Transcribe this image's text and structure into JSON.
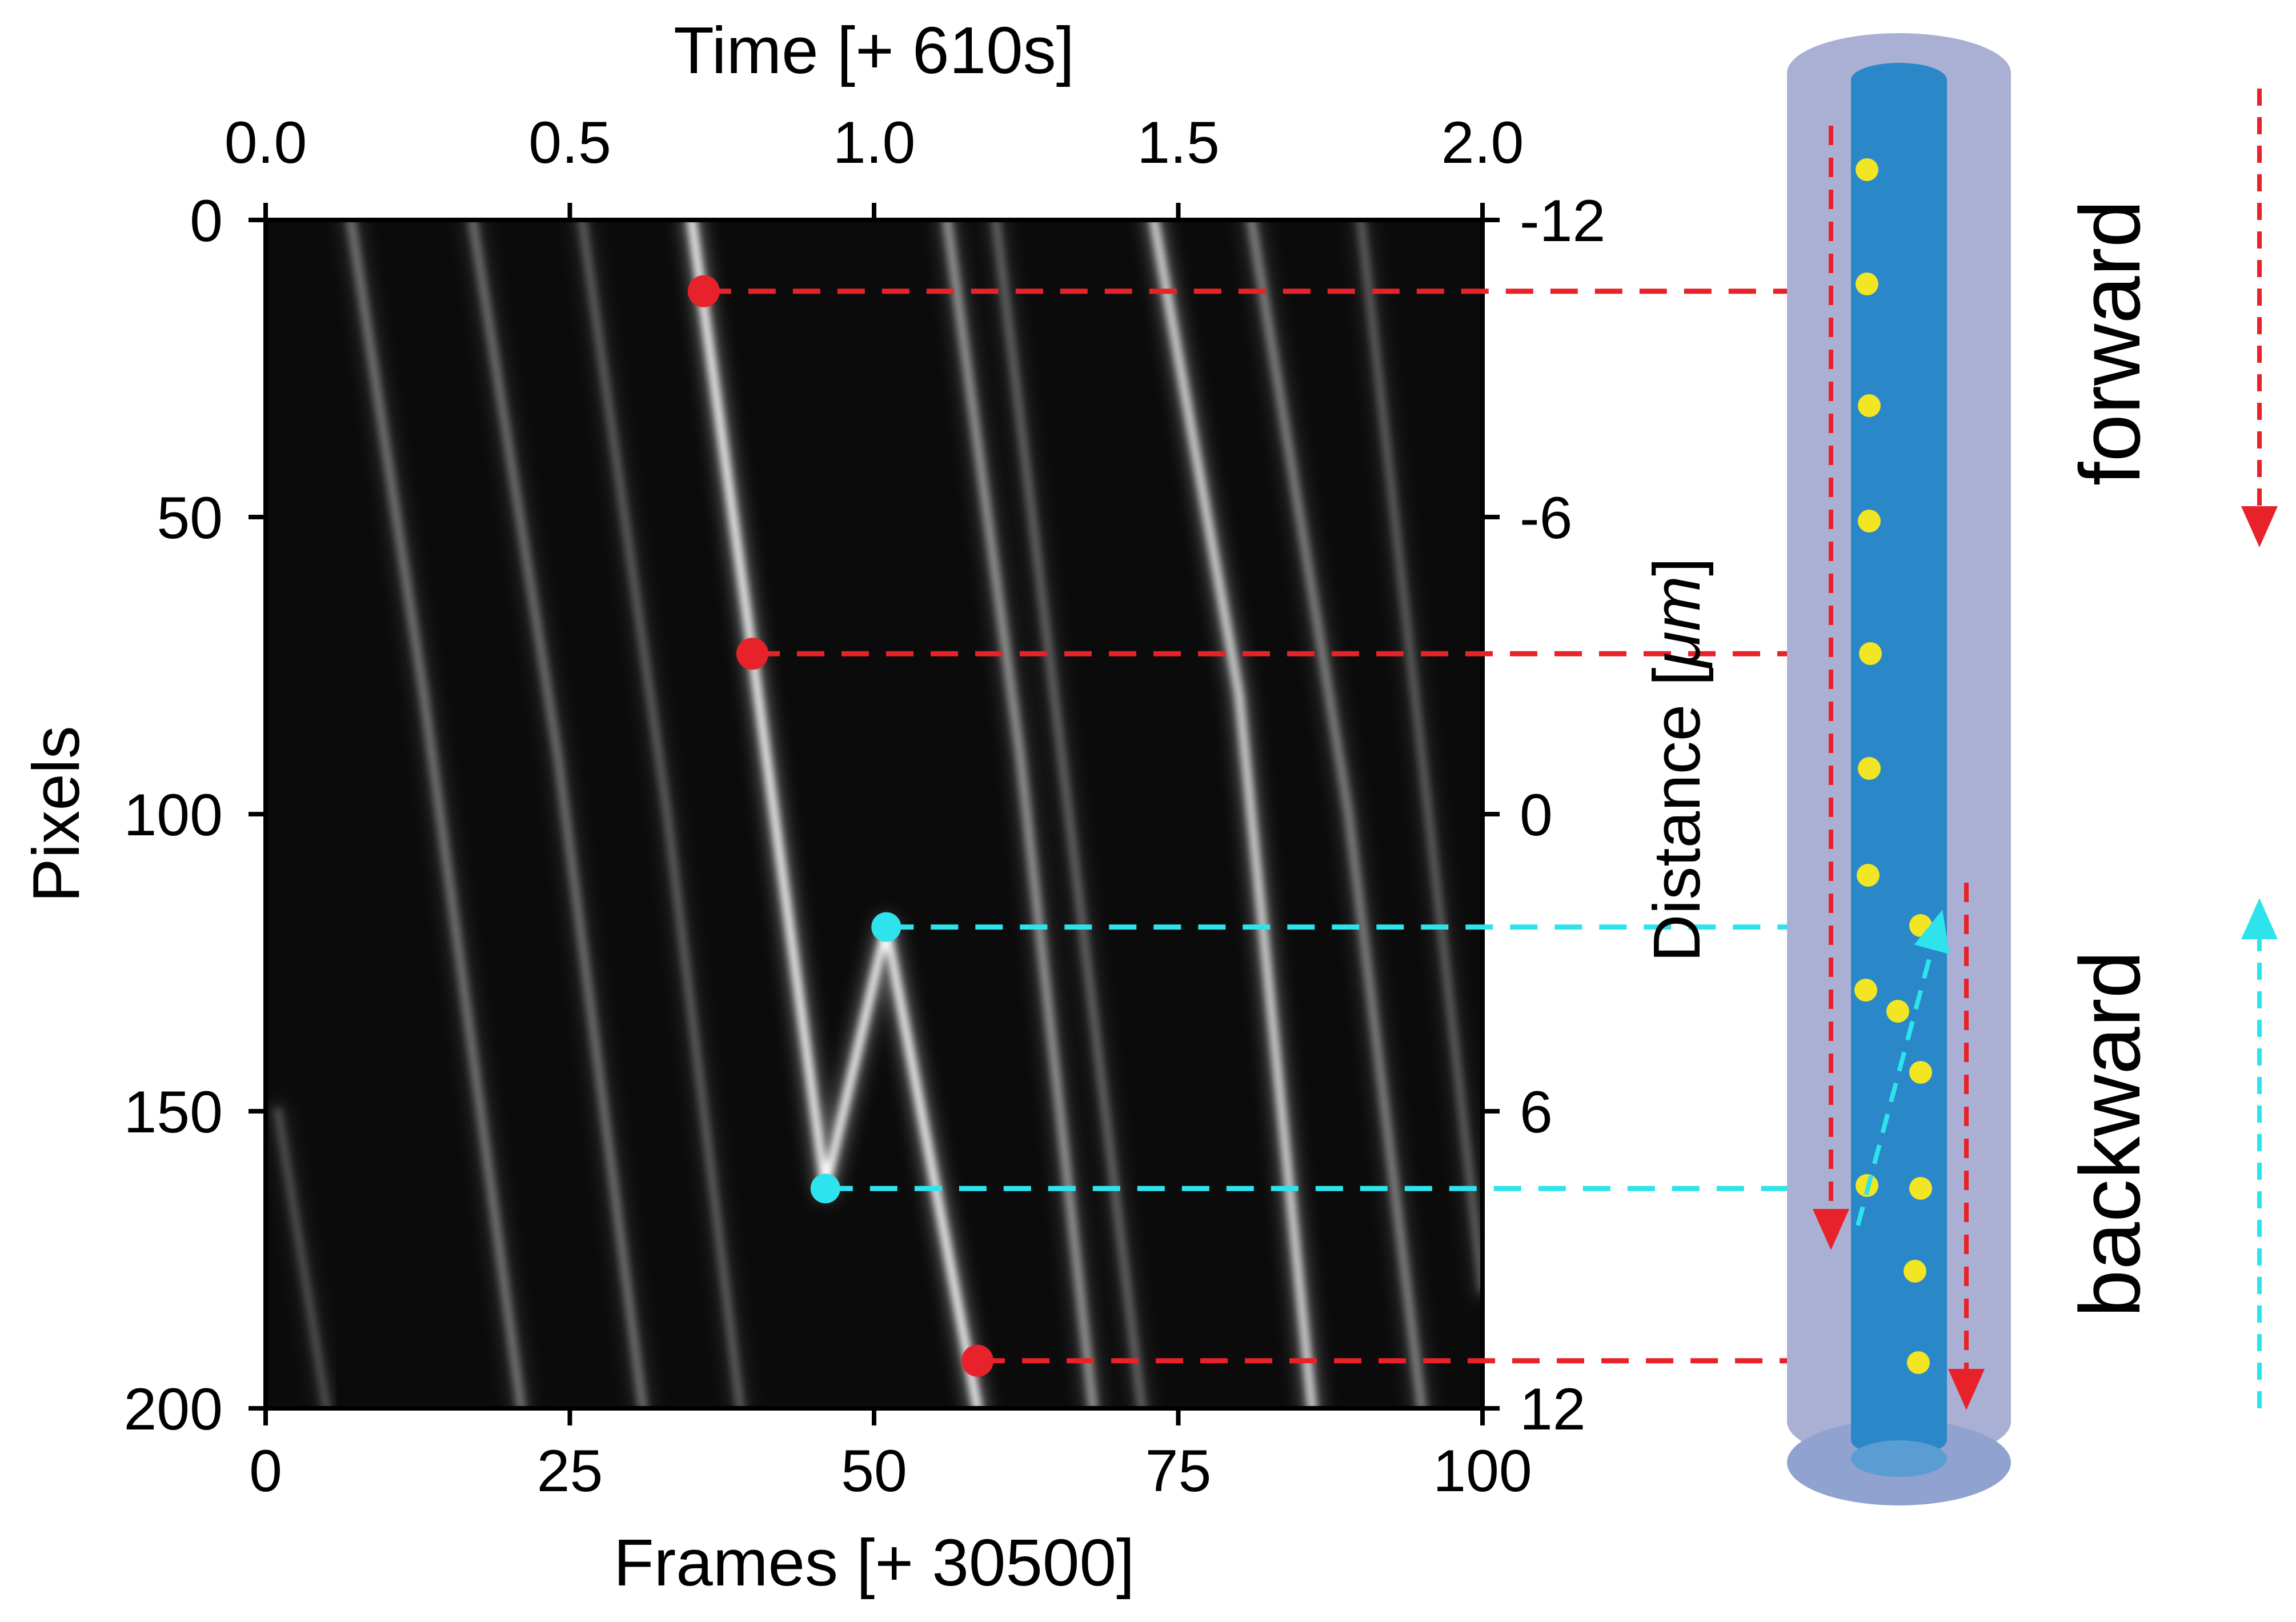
{
  "chart_data": {
    "type": "kymograph",
    "top_axis": {
      "label": "Time [+ 610s]",
      "range": [
        0.0,
        2.0
      ],
      "ticks": [
        "0.0",
        "0.5",
        "1.0",
        "1.5",
        "2.0"
      ]
    },
    "bottom_axis": {
      "label": "Frames [+ 30500]",
      "range": [
        0,
        100
      ],
      "ticks": [
        "0",
        "25",
        "50",
        "75",
        "100"
      ]
    },
    "left_axis": {
      "label": "Pixels",
      "range": [
        0,
        200
      ],
      "ticks": [
        "0",
        "50",
        "100",
        "150",
        "200"
      ]
    },
    "right_axis": {
      "label_prefix": "Distance [",
      "label_unit": "μm",
      "label_suffix": "]",
      "range": [
        -12,
        12
      ],
      "ticks": [
        "-12",
        "-6",
        "0",
        "6",
        "12"
      ]
    },
    "forward_markers": [
      {
        "frame": 36,
        "pixel": 12
      },
      {
        "frame": 40,
        "pixel": 73
      },
      {
        "frame": 58.5,
        "pixel": 192
      }
    ],
    "backward_markers": [
      {
        "frame": 51,
        "pixel": 119
      },
      {
        "frame": 46,
        "pixel": 163
      }
    ],
    "tracks": [
      {
        "frames": [
          35,
          40,
          46,
          51,
          58.5
        ],
        "pixels": [
          0,
          73,
          163,
          119,
          200
        ],
        "intensity": 1.0
      },
      {
        "frames": [
          73,
          80,
          86
        ],
        "pixels": [
          0,
          80,
          200
        ],
        "intensity": 0.85
      },
      {
        "frames": [
          56,
          62,
          68
        ],
        "pixels": [
          0,
          90,
          200
        ],
        "intensity": 0.55
      },
      {
        "frames": [
          81,
          89,
          95
        ],
        "pixels": [
          0,
          100,
          200
        ],
        "intensity": 0.45
      },
      {
        "frames": [
          7,
          13,
          21
        ],
        "pixels": [
          0,
          80,
          200
        ],
        "intensity": 0.4
      },
      {
        "frames": [
          17,
          24,
          31
        ],
        "pixels": [
          0,
          90,
          200
        ],
        "intensity": 0.38
      },
      {
        "frames": [
          26,
          33,
          39
        ],
        "pixels": [
          0,
          100,
          200
        ],
        "intensity": 0.3
      },
      {
        "frames": [
          60,
          66,
          72
        ],
        "pixels": [
          0,
          100,
          200
        ],
        "intensity": 0.32
      },
      {
        "frames": [
          90,
          95,
          100
        ],
        "pixels": [
          0,
          90,
          180
        ],
        "intensity": 0.3
      },
      {
        "frames": [
          1,
          5
        ],
        "pixels": [
          150,
          200
        ],
        "intensity": 0.25
      }
    ],
    "colors": {
      "forward": "#e8222a",
      "backward": "#2ee3ec",
      "axon_outer": "#aab0d4",
      "axon_inner": "#2a87c8",
      "vesicle": "#f2e523"
    },
    "annotations": {
      "forward": "forward",
      "backward": "backward"
    }
  }
}
